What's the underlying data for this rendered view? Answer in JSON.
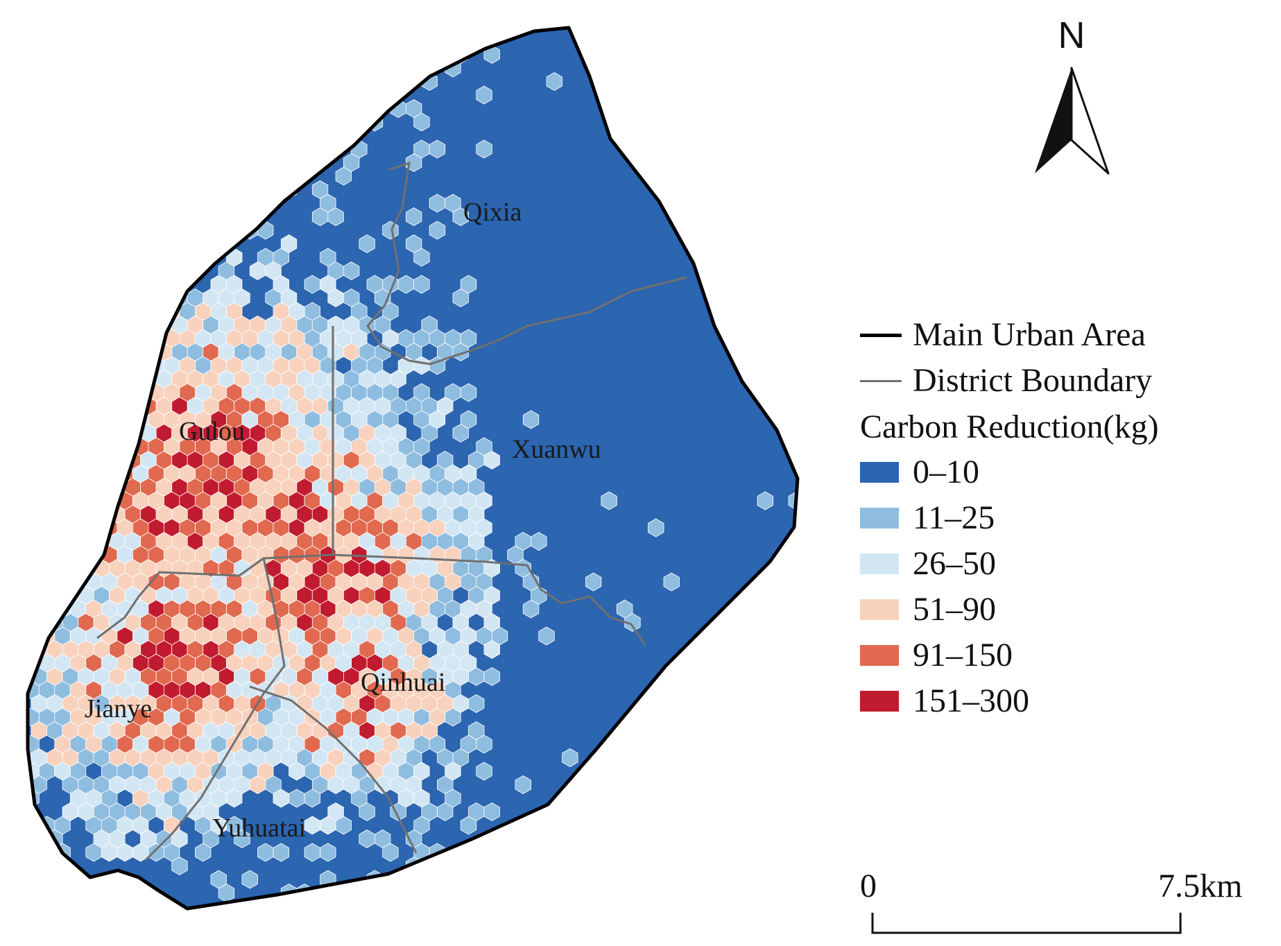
{
  "legend": {
    "main_urban_area": "Main Urban Area",
    "district_boundary": "District Boundary",
    "title": "Carbon Reduction(kg)",
    "classes": [
      {
        "label": "0–10",
        "color": "#2c65b0"
      },
      {
        "label": "11–25",
        "color": "#8fbde0"
      },
      {
        "label": "26–50",
        "color": "#d3e6f3"
      },
      {
        "label": "51–90",
        "color": "#f8d2bd"
      },
      {
        "label": "91–150",
        "color": "#e0694f"
      },
      {
        "label": "151–300",
        "color": "#c11b30"
      }
    ]
  },
  "districts": {
    "qixia": "Qixia",
    "gulou": "Gulou",
    "xuanwu": "Xuanwu",
    "jianye": "Jianye",
    "qinhuai": "Qinhuai",
    "yuhuatai": "Yuhuatai"
  },
  "north_arrow": {
    "letter": "N"
  },
  "scale_bar": {
    "start": "0",
    "end": "7.5km"
  }
}
